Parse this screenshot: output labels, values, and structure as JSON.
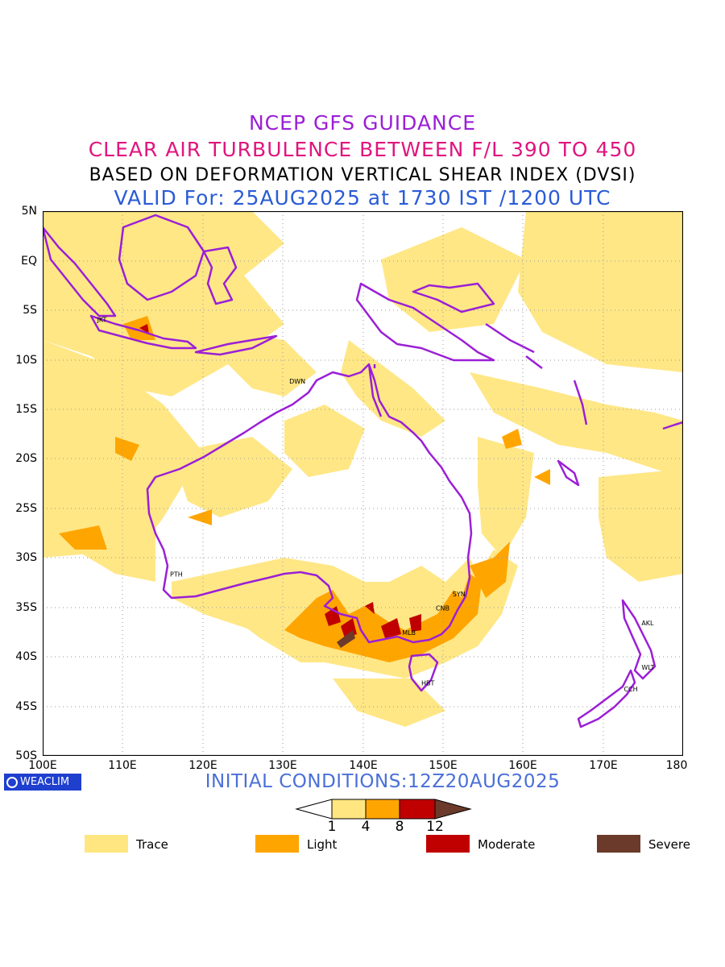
{
  "titles": {
    "line1": "NCEP GFS GUIDANCE",
    "line2": "CLEAR AIR TURBULENCE BETWEEN F/L 390 TO 450",
    "line3": "BASED ON DEFORMATION VERTICAL SHEAR INDEX (DVSI)",
    "line4": "VALID For: 25AUG2025 at 1730 IST /1200 UTC"
  },
  "axes": {
    "lat_labels": [
      "5N",
      "EQ",
      "5S",
      "10S",
      "15S",
      "20S",
      "25S",
      "30S",
      "35S",
      "40S",
      "45S",
      "50S"
    ],
    "lon_labels": [
      "100E",
      "110E",
      "120E",
      "130E",
      "140E",
      "150E",
      "160E",
      "170E",
      "180"
    ],
    "lat_range": [
      -50,
      5
    ],
    "lon_range": [
      100,
      180
    ],
    "grid": "dotted"
  },
  "cities": [
    {
      "code": "JKT",
      "lon": 106.8,
      "lat": -6.2
    },
    {
      "code": "DWN",
      "lon": 130.8,
      "lat": -12.4
    },
    {
      "code": "PTH",
      "lon": 115.9,
      "lat": -31.9
    },
    {
      "code": "SYN",
      "lon": 151.2,
      "lat": -33.9
    },
    {
      "code": "CNB",
      "lon": 149.1,
      "lat": -35.3
    },
    {
      "code": "MLB",
      "lon": 144.9,
      "lat": -37.8
    },
    {
      "code": "HBT",
      "lon": 147.3,
      "lat": -42.9
    },
    {
      "code": "AKL",
      "lon": 174.8,
      "lat": -36.8
    },
    {
      "code": "WLT",
      "lon": 174.8,
      "lat": -41.3
    },
    {
      "code": "CCH",
      "lon": 172.6,
      "lat": -43.5
    }
  ],
  "colorbar": {
    "ticks": [
      "1",
      "4",
      "8",
      "12"
    ],
    "colors": [
      "#ffffff",
      "#ffe680",
      "#ffa500",
      "#c00000",
      "#6b3a2a"
    ]
  },
  "legend": [
    {
      "label": "Trace",
      "color": "#ffe680"
    },
    {
      "label": "Light",
      "color": "#ffa500"
    },
    {
      "label": "Moderate",
      "color": "#c00000"
    },
    {
      "label": "Severe",
      "color": "#6b3a2a"
    }
  ],
  "footer": {
    "logo_text": "WEACLIM",
    "initial_conditions": "INITIAL CONDITIONS:12Z20AUG2025"
  },
  "colors": {
    "coastline": "#9b1fd6",
    "trace": "#ffe680",
    "light": "#ffa500",
    "moderate": "#c00000",
    "severe": "#6b3a2a"
  }
}
